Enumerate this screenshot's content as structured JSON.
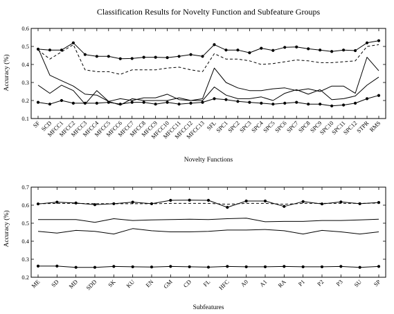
{
  "chart_data": [
    {
      "type": "line",
      "title": "Classification Results for Novelty Function and Subfeature Groups",
      "xlabel": "Novelty Functions",
      "ylabel": "Accuracy (%)",
      "ylim": [
        0.1,
        0.6
      ],
      "yticks": [
        "0.1",
        "0.2",
        "0.3",
        "0.4",
        "0.5",
        "0.6"
      ],
      "grid": false,
      "categories": [
        "SF",
        "SCD",
        "MFCC1",
        "MFCC2",
        "MFCC3",
        "MFCC4",
        "MFCC5",
        "MFCC6",
        "MFCC7",
        "MFCC8",
        "MFCC9",
        "MFCC10",
        "MFCC11",
        "MFCC12",
        "MFCC13",
        "SFL",
        "SPC1",
        "SPC2",
        "SPC3",
        "SPC4",
        "SPC5",
        "SPC6",
        "SPC7",
        "SPC8",
        "SPC9",
        "SPC10",
        "SPC11",
        "SPC12",
        "STPR",
        "RMS"
      ],
      "series": [
        {
          "style": "solid-dot",
          "values": [
            0.485,
            0.48,
            0.48,
            0.52,
            0.455,
            0.445,
            0.445,
            0.432,
            0.433,
            0.44,
            0.44,
            0.438,
            0.445,
            0.455,
            0.445,
            0.51,
            0.48,
            0.48,
            0.465,
            0.49,
            0.478,
            0.495,
            0.497,
            0.487,
            0.48,
            0.472,
            0.48,
            0.477,
            0.52,
            0.532
          ]
        },
        {
          "style": "dashed",
          "values": [
            0.48,
            0.43,
            0.47,
            0.51,
            0.37,
            0.36,
            0.36,
            0.345,
            0.37,
            0.37,
            0.37,
            0.38,
            0.385,
            0.37,
            0.36,
            0.46,
            0.43,
            0.43,
            0.42,
            0.4,
            0.405,
            0.415,
            0.425,
            0.42,
            0.41,
            0.41,
            0.415,
            0.42,
            0.5,
            0.51
          ]
        },
        {
          "style": "solid",
          "values": [
            0.49,
            0.34,
            0.31,
            0.28,
            0.235,
            0.23,
            0.195,
            0.21,
            0.2,
            0.215,
            0.215,
            0.235,
            0.205,
            0.2,
            0.21,
            0.38,
            0.3,
            0.27,
            0.255,
            0.255,
            0.265,
            0.27,
            0.255,
            0.265,
            0.25,
            0.28,
            0.28,
            0.24,
            0.44,
            0.365
          ]
        },
        {
          "style": "solid",
          "values": [
            0.285,
            0.24,
            0.285,
            0.255,
            0.18,
            0.255,
            0.195,
            0.175,
            0.21,
            0.2,
            0.2,
            0.2,
            0.215,
            0.2,
            0.2,
            0.275,
            0.23,
            0.21,
            0.21,
            0.22,
            0.2,
            0.24,
            0.26,
            0.235,
            0.26,
            0.205,
            0.21,
            0.225,
            0.285,
            0.33
          ]
        },
        {
          "style": "solid-dot",
          "values": [
            0.19,
            0.18,
            0.2,
            0.185,
            0.185,
            0.185,
            0.19,
            0.18,
            0.19,
            0.19,
            0.18,
            0.19,
            0.18,
            0.185,
            0.19,
            0.21,
            0.205,
            0.195,
            0.19,
            0.185,
            0.18,
            0.185,
            0.19,
            0.18,
            0.18,
            0.17,
            0.175,
            0.185,
            0.21,
            0.228
          ]
        }
      ]
    },
    {
      "type": "line",
      "xlabel": "Subfeatures",
      "ylabel": "Accuracy (%)",
      "ylim": [
        0.2,
        0.7
      ],
      "yticks": [
        "0.2",
        "0.3",
        "0.4",
        "0.5",
        "0.6",
        "0.7"
      ],
      "grid": false,
      "categories": [
        "ME",
        "SD",
        "MD",
        "SDD",
        "SK",
        "KU",
        "EN",
        "GM",
        "CD",
        "FL",
        "HFC",
        "A0",
        "A1",
        "RA",
        "P1",
        "P2",
        "P3",
        "SU",
        "SP"
      ],
      "series": [
        {
          "style": "solid-dot",
          "values": [
            0.607,
            0.617,
            0.612,
            0.603,
            0.608,
            0.617,
            0.608,
            0.627,
            0.628,
            0.627,
            0.588,
            0.623,
            0.623,
            0.593,
            0.62,
            0.607,
            0.618,
            0.608,
            0.615
          ]
        },
        {
          "style": "dashed",
          "values": [
            0.608,
            0.61,
            0.61,
            0.608,
            0.608,
            0.608,
            0.608,
            0.61,
            0.61,
            0.61,
            0.605,
            0.61,
            0.61,
            0.605,
            0.61,
            0.61,
            0.61,
            0.61,
            0.612
          ]
        },
        {
          "style": "solid",
          "values": [
            0.52,
            0.52,
            0.52,
            0.505,
            0.525,
            0.515,
            0.518,
            0.52,
            0.522,
            0.52,
            0.525,
            0.528,
            0.508,
            0.51,
            0.51,
            0.515,
            0.515,
            0.518,
            0.522
          ]
        },
        {
          "style": "solid",
          "values": [
            0.455,
            0.445,
            0.46,
            0.455,
            0.44,
            0.47,
            0.458,
            0.452,
            0.452,
            0.455,
            0.462,
            0.462,
            0.465,
            0.458,
            0.44,
            0.46,
            0.452,
            0.44,
            0.452
          ]
        },
        {
          "style": "solid-dot",
          "values": [
            0.262,
            0.262,
            0.255,
            0.255,
            0.26,
            0.258,
            0.257,
            0.26,
            0.258,
            0.256,
            0.26,
            0.258,
            0.258,
            0.26,
            0.258,
            0.258,
            0.26,
            0.255,
            0.26
          ]
        }
      ]
    }
  ]
}
